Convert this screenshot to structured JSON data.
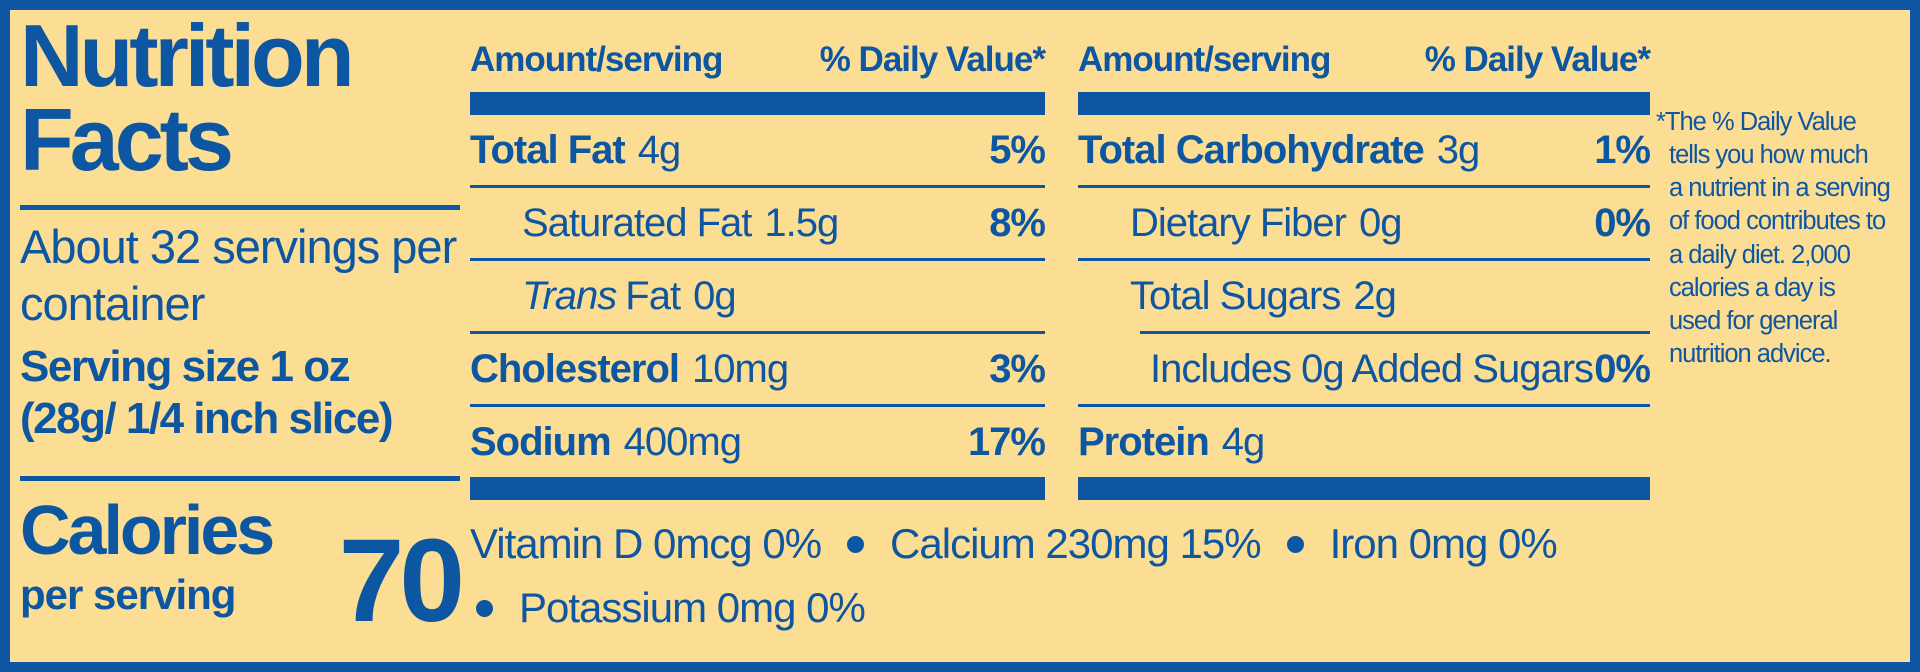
{
  "colors": {
    "blue": "#0D56A2",
    "background": "#FCDD94"
  },
  "panel": {
    "title": "Nutrition Facts",
    "servings_per_container": "About 32 servings per container",
    "serving_size_line1": "Serving size 1 oz",
    "serving_size_line2": "(28g/ 1/4 inch slice)",
    "calories_label": "Calories",
    "calories_sublabel": "per serving",
    "calories_value": "70"
  },
  "columns": [
    {
      "header_amount": "Amount/serving",
      "header_dv": "% Daily Value*",
      "rows": [
        {
          "label": "Total Fat",
          "amount": "4g",
          "dv": "5%"
        },
        {
          "label": "Saturated Fat",
          "amount": "1.5g",
          "dv": "8%"
        },
        {
          "label_italic": "Trans",
          "label": "Fat",
          "amount": "0g",
          "dv": ""
        },
        {
          "label": "Cholesterol",
          "amount": "10mg",
          "dv": "3%"
        },
        {
          "label": "Sodium",
          "amount": "400mg",
          "dv": "17%"
        }
      ]
    },
    {
      "header_amount": "Amount/serving",
      "header_dv": "% Daily Value*",
      "rows": [
        {
          "label": "Total Carbohydrate",
          "amount": "3g",
          "dv": "1%"
        },
        {
          "label": "Dietary Fiber",
          "amount": "0g",
          "dv": "0%"
        },
        {
          "label": "Total Sugars",
          "amount": "2g",
          "dv": ""
        },
        {
          "label": "Includes 0g Added Sugars",
          "amount": "",
          "dv": "0%"
        },
        {
          "label": "Protein",
          "amount": "4g",
          "dv": ""
        }
      ]
    }
  ],
  "micronutrients": {
    "line1": [
      "Vitamin D 0mcg 0%",
      "Calcium 230mg 15%",
      "Iron 0mg 0%"
    ],
    "line2": [
      "Potassium 0mg 0%"
    ]
  },
  "footnote_lines": [
    "*The % Daily Value",
    "tells you how much",
    "a nutrient in a serving",
    "of food contributes to",
    "a daily diet. 2,000",
    "calories a day is",
    "used for general",
    "nutrition advice."
  ]
}
